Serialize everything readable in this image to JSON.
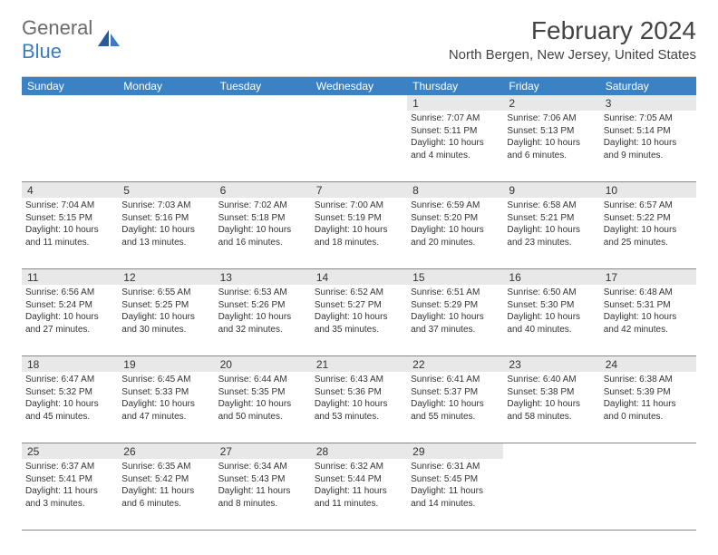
{
  "logo": {
    "text1": "General",
    "text2": "Blue"
  },
  "title": "February 2024",
  "location": "North Bergen, New Jersey, United States",
  "colors": {
    "header_bg": "#3b82c4",
    "header_text": "#ffffff",
    "daynum_bg": "#e8e8e8",
    "border": "#888888",
    "logo_gray": "#6b6b6b",
    "logo_blue": "#3b7bbf"
  },
  "day_headers": [
    "Sunday",
    "Monday",
    "Tuesday",
    "Wednesday",
    "Thursday",
    "Friday",
    "Saturday"
  ],
  "weeks": [
    [
      {
        "n": "",
        "sunrise": "",
        "sunset": "",
        "daylight": ""
      },
      {
        "n": "",
        "sunrise": "",
        "sunset": "",
        "daylight": ""
      },
      {
        "n": "",
        "sunrise": "",
        "sunset": "",
        "daylight": ""
      },
      {
        "n": "",
        "sunrise": "",
        "sunset": "",
        "daylight": ""
      },
      {
        "n": "1",
        "sunrise": "Sunrise: 7:07 AM",
        "sunset": "Sunset: 5:11 PM",
        "daylight": "Daylight: 10 hours and 4 minutes."
      },
      {
        "n": "2",
        "sunrise": "Sunrise: 7:06 AM",
        "sunset": "Sunset: 5:13 PM",
        "daylight": "Daylight: 10 hours and 6 minutes."
      },
      {
        "n": "3",
        "sunrise": "Sunrise: 7:05 AM",
        "sunset": "Sunset: 5:14 PM",
        "daylight": "Daylight: 10 hours and 9 minutes."
      }
    ],
    [
      {
        "n": "4",
        "sunrise": "Sunrise: 7:04 AM",
        "sunset": "Sunset: 5:15 PM",
        "daylight": "Daylight: 10 hours and 11 minutes."
      },
      {
        "n": "5",
        "sunrise": "Sunrise: 7:03 AM",
        "sunset": "Sunset: 5:16 PM",
        "daylight": "Daylight: 10 hours and 13 minutes."
      },
      {
        "n": "6",
        "sunrise": "Sunrise: 7:02 AM",
        "sunset": "Sunset: 5:18 PM",
        "daylight": "Daylight: 10 hours and 16 minutes."
      },
      {
        "n": "7",
        "sunrise": "Sunrise: 7:00 AM",
        "sunset": "Sunset: 5:19 PM",
        "daylight": "Daylight: 10 hours and 18 minutes."
      },
      {
        "n": "8",
        "sunrise": "Sunrise: 6:59 AM",
        "sunset": "Sunset: 5:20 PM",
        "daylight": "Daylight: 10 hours and 20 minutes."
      },
      {
        "n": "9",
        "sunrise": "Sunrise: 6:58 AM",
        "sunset": "Sunset: 5:21 PM",
        "daylight": "Daylight: 10 hours and 23 minutes."
      },
      {
        "n": "10",
        "sunrise": "Sunrise: 6:57 AM",
        "sunset": "Sunset: 5:22 PM",
        "daylight": "Daylight: 10 hours and 25 minutes."
      }
    ],
    [
      {
        "n": "11",
        "sunrise": "Sunrise: 6:56 AM",
        "sunset": "Sunset: 5:24 PM",
        "daylight": "Daylight: 10 hours and 27 minutes."
      },
      {
        "n": "12",
        "sunrise": "Sunrise: 6:55 AM",
        "sunset": "Sunset: 5:25 PM",
        "daylight": "Daylight: 10 hours and 30 minutes."
      },
      {
        "n": "13",
        "sunrise": "Sunrise: 6:53 AM",
        "sunset": "Sunset: 5:26 PM",
        "daylight": "Daylight: 10 hours and 32 minutes."
      },
      {
        "n": "14",
        "sunrise": "Sunrise: 6:52 AM",
        "sunset": "Sunset: 5:27 PM",
        "daylight": "Daylight: 10 hours and 35 minutes."
      },
      {
        "n": "15",
        "sunrise": "Sunrise: 6:51 AM",
        "sunset": "Sunset: 5:29 PM",
        "daylight": "Daylight: 10 hours and 37 minutes."
      },
      {
        "n": "16",
        "sunrise": "Sunrise: 6:50 AM",
        "sunset": "Sunset: 5:30 PM",
        "daylight": "Daylight: 10 hours and 40 minutes."
      },
      {
        "n": "17",
        "sunrise": "Sunrise: 6:48 AM",
        "sunset": "Sunset: 5:31 PM",
        "daylight": "Daylight: 10 hours and 42 minutes."
      }
    ],
    [
      {
        "n": "18",
        "sunrise": "Sunrise: 6:47 AM",
        "sunset": "Sunset: 5:32 PM",
        "daylight": "Daylight: 10 hours and 45 minutes."
      },
      {
        "n": "19",
        "sunrise": "Sunrise: 6:45 AM",
        "sunset": "Sunset: 5:33 PM",
        "daylight": "Daylight: 10 hours and 47 minutes."
      },
      {
        "n": "20",
        "sunrise": "Sunrise: 6:44 AM",
        "sunset": "Sunset: 5:35 PM",
        "daylight": "Daylight: 10 hours and 50 minutes."
      },
      {
        "n": "21",
        "sunrise": "Sunrise: 6:43 AM",
        "sunset": "Sunset: 5:36 PM",
        "daylight": "Daylight: 10 hours and 53 minutes."
      },
      {
        "n": "22",
        "sunrise": "Sunrise: 6:41 AM",
        "sunset": "Sunset: 5:37 PM",
        "daylight": "Daylight: 10 hours and 55 minutes."
      },
      {
        "n": "23",
        "sunrise": "Sunrise: 6:40 AM",
        "sunset": "Sunset: 5:38 PM",
        "daylight": "Daylight: 10 hours and 58 minutes."
      },
      {
        "n": "24",
        "sunrise": "Sunrise: 6:38 AM",
        "sunset": "Sunset: 5:39 PM",
        "daylight": "Daylight: 11 hours and 0 minutes."
      }
    ],
    [
      {
        "n": "25",
        "sunrise": "Sunrise: 6:37 AM",
        "sunset": "Sunset: 5:41 PM",
        "daylight": "Daylight: 11 hours and 3 minutes."
      },
      {
        "n": "26",
        "sunrise": "Sunrise: 6:35 AM",
        "sunset": "Sunset: 5:42 PM",
        "daylight": "Daylight: 11 hours and 6 minutes."
      },
      {
        "n": "27",
        "sunrise": "Sunrise: 6:34 AM",
        "sunset": "Sunset: 5:43 PM",
        "daylight": "Daylight: 11 hours and 8 minutes."
      },
      {
        "n": "28",
        "sunrise": "Sunrise: 6:32 AM",
        "sunset": "Sunset: 5:44 PM",
        "daylight": "Daylight: 11 hours and 11 minutes."
      },
      {
        "n": "29",
        "sunrise": "Sunrise: 6:31 AM",
        "sunset": "Sunset: 5:45 PM",
        "daylight": "Daylight: 11 hours and 14 minutes."
      },
      {
        "n": "",
        "sunrise": "",
        "sunset": "",
        "daylight": ""
      },
      {
        "n": "",
        "sunrise": "",
        "sunset": "",
        "daylight": ""
      }
    ]
  ]
}
